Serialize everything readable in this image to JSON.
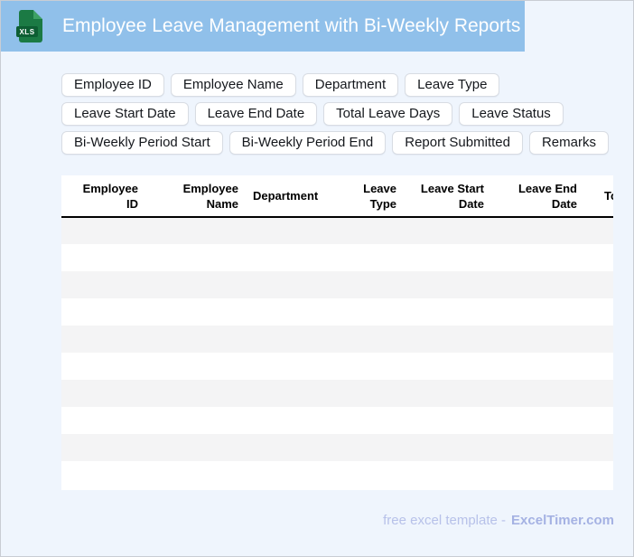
{
  "app": {
    "title": "Employee Leave Management with Bi-Weekly Reports",
    "file_icon_label": "XLS"
  },
  "chips": [
    "Employee ID",
    "Employee Name",
    "Department",
    "Leave Type",
    "Leave Start Date",
    "Leave End Date",
    "Total Leave Days",
    "Leave Status",
    "Bi-Weekly Period Start",
    "Bi-Weekly Period End",
    "Report Submitted",
    "Remarks"
  ],
  "table": {
    "columns": [
      {
        "label": "Employee ID"
      },
      {
        "label": "Employee Name"
      },
      {
        "label": "Department"
      },
      {
        "label": "Leave Type"
      },
      {
        "label": "Leave Start Date"
      },
      {
        "label": "Leave End Date"
      },
      {
        "label": "Total Leave Days"
      }
    ],
    "visible_empty_rows": 10
  },
  "footer": {
    "text": "free excel template -",
    "brand": "ExcelTimer.com"
  },
  "colors": {
    "titlebar": "#90c0ea",
    "page_background": "#eff5fd",
    "stripe_row": "#f4f4f5",
    "file_icon_green": "#1b7a44",
    "file_badge_green": "#0d5e33",
    "header_rule": "#000000",
    "footer_text": "#b7c1e9",
    "footer_brand": "#a5b2e3"
  }
}
